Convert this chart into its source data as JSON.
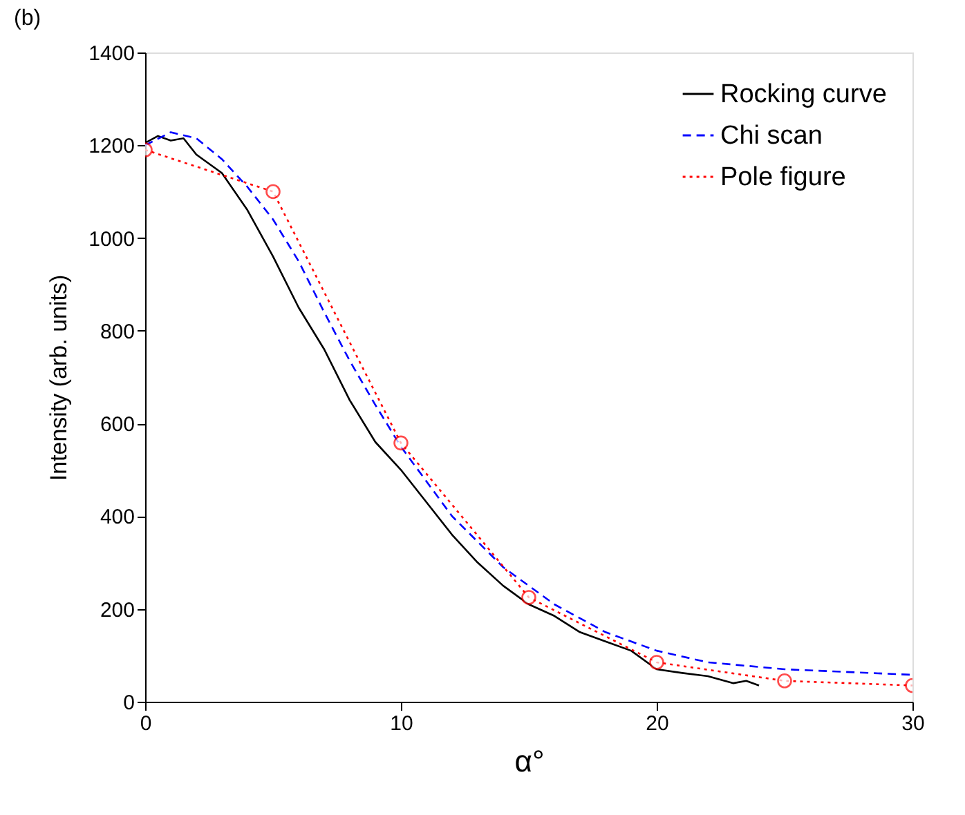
{
  "chart_data": {
    "type": "line",
    "title": "(b)",
    "xlabel": "α°",
    "ylabel": "Intensity (arb. units)",
    "xlim": [
      0,
      30
    ],
    "xticks": [
      0,
      10,
      20,
      30
    ],
    "ylim": [
      0,
      1400
    ],
    "yticks": [
      0,
      200,
      400,
      600,
      800,
      1000,
      1200,
      1400
    ],
    "grid": false,
    "legend": "top right",
    "series": [
      {
        "name": "Rocking curve",
        "color": "#000000",
        "line_style": "solid",
        "marker": "none",
        "x": [
          0,
          0.5,
          1,
          1.5,
          2,
          3,
          4,
          5,
          6,
          7,
          8,
          9,
          10,
          11,
          12,
          13,
          14,
          15,
          16,
          17,
          18,
          19,
          20,
          21,
          22,
          23,
          23.5,
          24
        ],
        "values": [
          1205,
          1220,
          1210,
          1215,
          1180,
          1140,
          1060,
          960,
          850,
          760,
          650,
          560,
          500,
          430,
          360,
          300,
          250,
          210,
          185,
          150,
          130,
          110,
          70,
          62,
          55,
          40,
          45,
          35
        ]
      },
      {
        "name": "Chi scan",
        "color": "#0000ff",
        "line_style": "dashed",
        "marker": "none",
        "x": [
          0,
          1,
          2,
          3,
          4,
          5,
          6,
          7,
          8,
          9,
          10,
          12,
          14,
          16,
          18,
          20,
          22,
          25,
          30
        ],
        "values": [
          1200,
          1228,
          1215,
          1170,
          1110,
          1040,
          950,
          840,
          735,
          640,
          550,
          400,
          290,
          210,
          150,
          110,
          85,
          70,
          58
        ]
      },
      {
        "name": "Pole figure",
        "color": "#ff0000",
        "line_style": "dotted",
        "marker": "circle",
        "x": [
          0,
          5,
          10,
          15,
          20,
          25,
          30
        ],
        "values": [
          1190,
          1100,
          558,
          225,
          85,
          45,
          35
        ]
      }
    ]
  }
}
